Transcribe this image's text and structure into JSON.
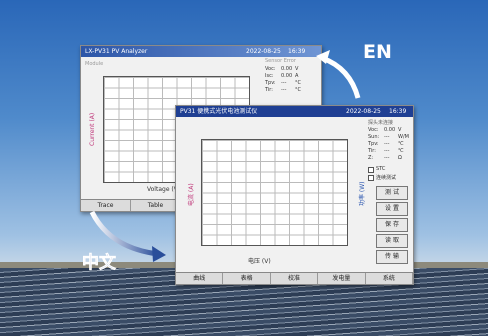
{
  "en_window": {
    "title": "LX-PV31 PV Analyzer",
    "date": "2022-08-25",
    "time": "16:39",
    "plot_label": "Module",
    "status": "Sensor Error",
    "readings": [
      [
        "Voc:",
        "0.00",
        "V"
      ],
      [
        "Isc:",
        "0.00",
        "A"
      ],
      [
        "Tpv:",
        "---",
        "°C"
      ],
      [
        "Tir:",
        "---",
        "°C"
      ]
    ],
    "y_label": "Current (A)",
    "x_label": "Voltage (V)",
    "tabs": [
      "Trace",
      "Table"
    ]
  },
  "cn_window": {
    "title": "PV31 便携式光伏电池测试仪",
    "date": "2022-08-25",
    "time": "16:39",
    "status": "探头未连接",
    "readings": [
      [
        "Voc:",
        "0.00",
        "V"
      ],
      [
        "Sun:",
        "---",
        "W/M"
      ],
      [
        "Tpv:",
        "---",
        "℃"
      ],
      [
        "Tir:",
        "---",
        "℃"
      ],
      [
        "Z:",
        "---",
        "Ω"
      ]
    ],
    "checkboxes": [
      "STC",
      "连续测试"
    ],
    "buttons": [
      "测 试",
      "设 置",
      "保 存",
      "读 取",
      "传 输"
    ],
    "y_label": "电流 (A)",
    "y2_label": "功率 (W)",
    "x_label": "电压 (V)",
    "tabs": [
      "曲线",
      "表格",
      "校准",
      "发电量",
      "系统"
    ]
  },
  "annotations": {
    "en": "EN",
    "cn": "中文"
  }
}
